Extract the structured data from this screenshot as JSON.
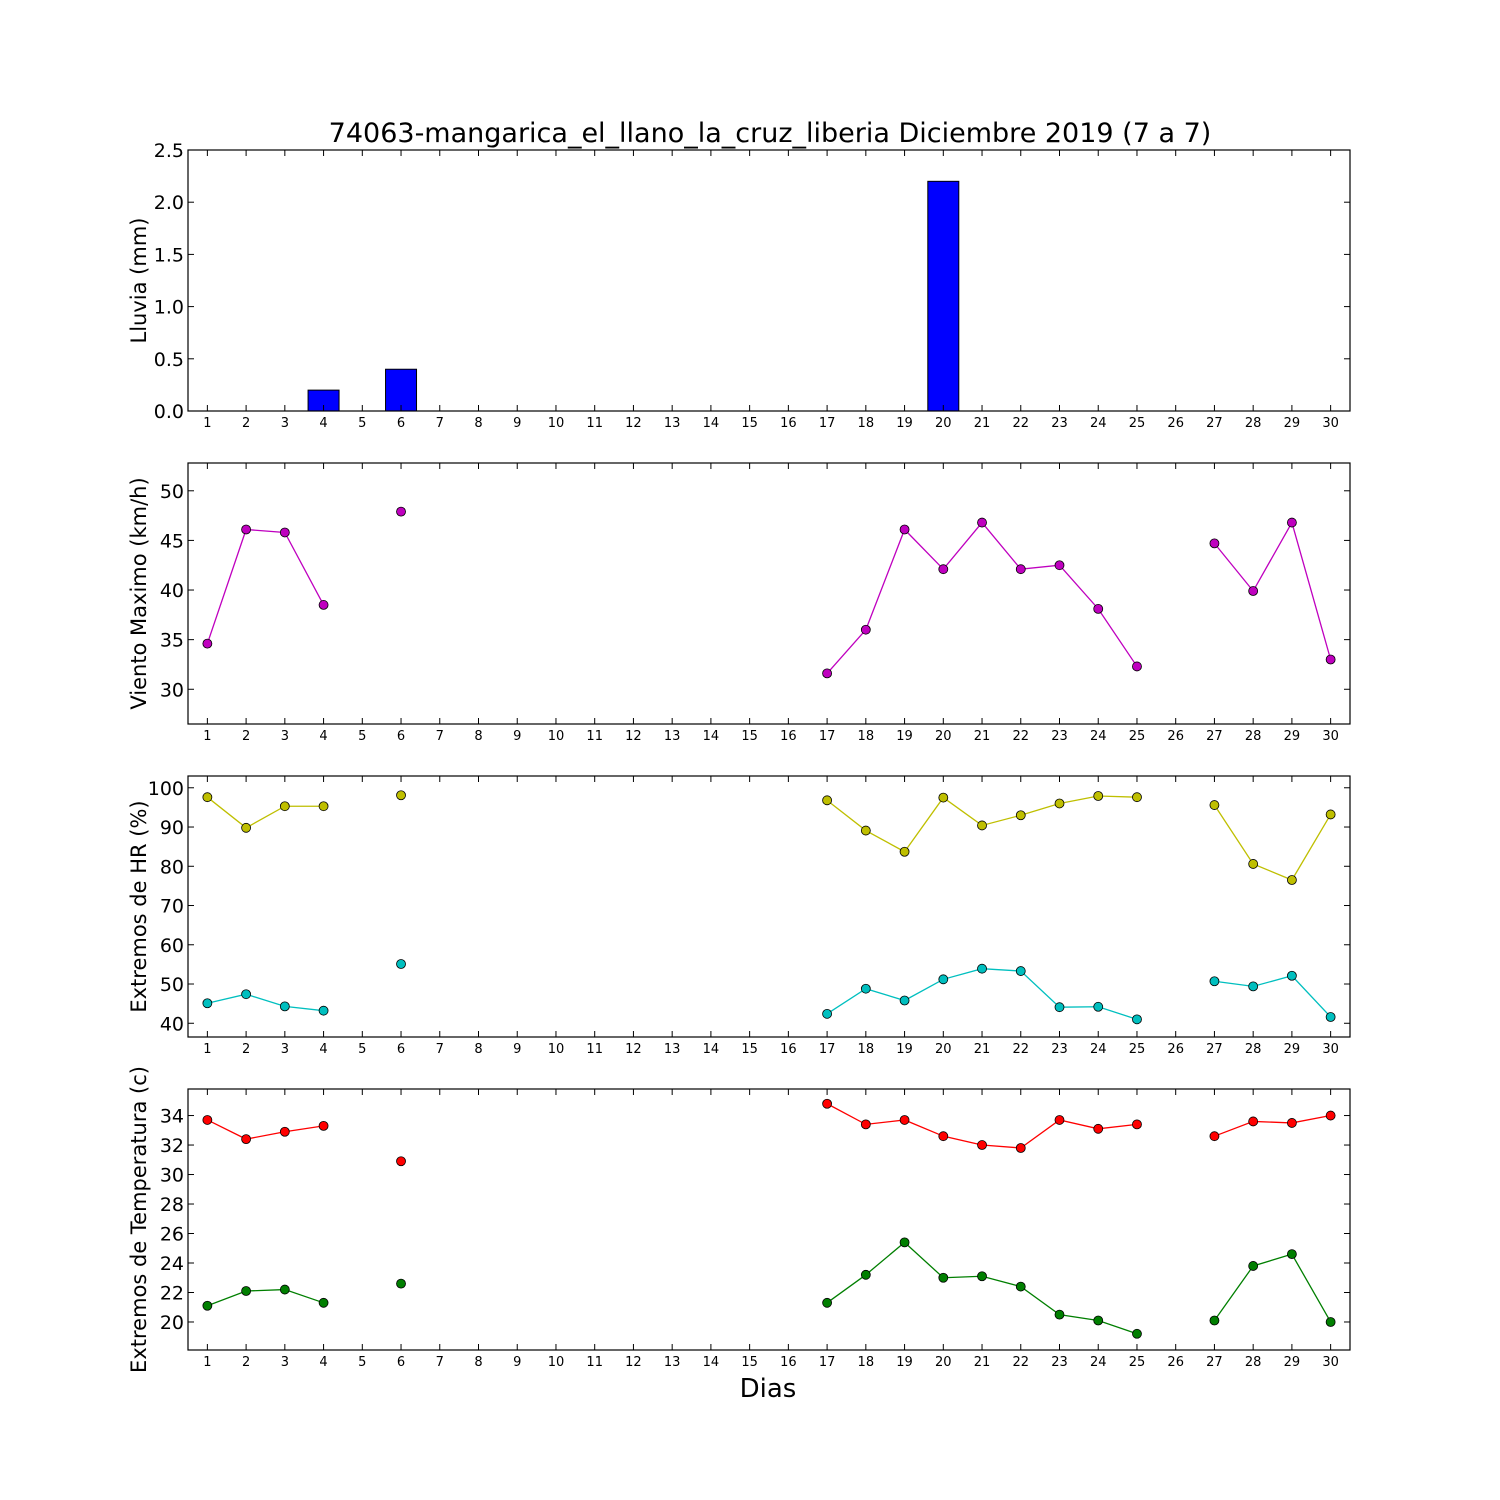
{
  "chart_data": {
    "title": "74063-mangarica_el_llano_la_cruz_liberia Diciembre 2019  (7 a 7)",
    "xlabel": "Dias",
    "days": [
      1,
      2,
      3,
      4,
      5,
      6,
      7,
      8,
      9,
      10,
      11,
      12,
      13,
      14,
      15,
      16,
      17,
      18,
      19,
      20,
      21,
      22,
      23,
      24,
      25,
      26,
      27,
      28,
      29,
      30
    ],
    "panels": [
      {
        "type": "bar",
        "ylabel": "Lluvia (mm)",
        "ylim": [
          0,
          2.5
        ],
        "yticks": [
          "0.0",
          "0.5",
          "1.0",
          "1.5",
          "2.0",
          "2.5"
        ],
        "series": [
          {
            "color": "#0000ff",
            "values": [
              0,
              0,
              0,
              0.2,
              null,
              0.4,
              0,
              0,
              0,
              0,
              0,
              0,
              0,
              0,
              0,
              0,
              0,
              0,
              0,
              2.2,
              0,
              0,
              0,
              0,
              0,
              0,
              0,
              0,
              0,
              0
            ]
          }
        ]
      },
      {
        "type": "line",
        "ylabel": "Viento Maximo (km/h)",
        "ylim": [
          26.5,
          52.8
        ],
        "yticks": [
          "30",
          "35",
          "40",
          "45",
          "50"
        ],
        "series": [
          {
            "color": "#bf00bf",
            "values": [
              34.6,
              46.1,
              45.8,
              38.5,
              null,
              47.9,
              null,
              null,
              null,
              null,
              null,
              null,
              null,
              null,
              null,
              null,
              31.6,
              36.0,
              46.1,
              42.1,
              46.8,
              42.1,
              42.5,
              38.1,
              32.3,
              null,
              44.7,
              39.9,
              46.8,
              33.0
            ]
          }
        ]
      },
      {
        "type": "line",
        "ylabel": "Extremos de HR (%)",
        "ylim": [
          36.5,
          103
        ],
        "yticks": [
          "40",
          "50",
          "60",
          "70",
          "80",
          "90",
          "100"
        ],
        "series": [
          {
            "color": "#bfbf00",
            "values": [
              97.6,
              89.8,
              95.3,
              95.3,
              null,
              98.1,
              null,
              null,
              null,
              null,
              null,
              null,
              null,
              null,
              null,
              null,
              96.8,
              89.1,
              83.7,
              97.5,
              90.4,
              93.0,
              96.0,
              97.9,
              97.6,
              null,
              95.6,
              80.6,
              76.5,
              93.2
            ]
          },
          {
            "color": "#00bfbf",
            "values": [
              45.1,
              47.4,
              44.3,
              43.2,
              null,
              55.1,
              null,
              null,
              null,
              null,
              null,
              null,
              null,
              null,
              null,
              null,
              42.4,
              48.8,
              45.8,
              51.2,
              53.9,
              53.3,
              44.1,
              44.2,
              41.0,
              null,
              50.7,
              49.4,
              52.1,
              41.6
            ]
          }
        ]
      },
      {
        "type": "line",
        "ylabel": "Extremos de Temperatura (c)",
        "ylim": [
          18.1,
          35.8
        ],
        "yticks": [
          "20",
          "22",
          "24",
          "26",
          "28",
          "30",
          "32",
          "34"
        ],
        "series": [
          {
            "color": "#ff0000",
            "values": [
              33.7,
              32.4,
              32.9,
              33.3,
              null,
              30.9,
              null,
              null,
              null,
              null,
              null,
              null,
              null,
              null,
              null,
              null,
              34.8,
              33.4,
              33.7,
              32.6,
              32.0,
              31.8,
              33.7,
              33.1,
              33.4,
              null,
              32.6,
              33.6,
              33.5,
              34.0
            ]
          },
          {
            "color": "#007f00",
            "values": [
              21.1,
              22.1,
              22.2,
              21.3,
              null,
              22.6,
              null,
              null,
              null,
              null,
              null,
              null,
              null,
              null,
              null,
              null,
              21.3,
              23.2,
              25.4,
              23.0,
              23.1,
              22.4,
              20.5,
              20.1,
              19.2,
              null,
              20.1,
              23.8,
              24.6,
              20.0
            ]
          }
        ]
      }
    ]
  }
}
